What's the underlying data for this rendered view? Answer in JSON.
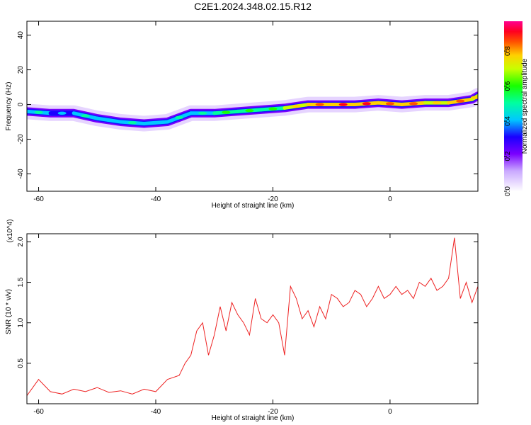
{
  "figure_title": "C2E1.2024.348.02.15.R12",
  "chart_data": [
    {
      "type": "heatmap",
      "title": "",
      "xlabel": "Height of straight line (km)",
      "ylabel": "Frequency (Hz)",
      "xlim": [
        -62,
        15
      ],
      "ylim": [
        -50,
        48
      ],
      "xticks": [
        -60,
        -40,
        -20,
        0
      ],
      "yticks": [
        40,
        20,
        0,
        -20,
        -40
      ],
      "grid": false,
      "colorbar": {
        "label": "Normalized spectral amplitude",
        "range": [
          0,
          0.97
        ],
        "ticks": [
          "0.0",
          "0.2",
          "0.4",
          "0.6",
          "0.8"
        ],
        "tick_values": [
          0,
          0.2,
          0.4,
          0.6,
          0.8
        ],
        "colormap": "white-violet-blue-cyan-green-yellow-orange-red-magenta"
      },
      "ridge": {
        "x": [
          -62,
          -58,
          -54,
          -50,
          -46,
          -42,
          -38,
          -34,
          -30,
          -26,
          -22,
          -18,
          -14,
          -10,
          -6,
          -2,
          2,
          6,
          10,
          14,
          15
        ],
        "frequency": [
          -4,
          -5,
          -5,
          -8,
          -10,
          -11,
          -10,
          -5,
          -5,
          -4,
          -3,
          -2,
          0,
          0,
          0,
          1,
          0,
          1,
          1,
          3,
          5
        ],
        "amplitude": [
          0.45,
          0.4,
          0.45,
          0.42,
          0.45,
          0.42,
          0.45,
          0.5,
          0.55,
          0.6,
          0.55,
          0.7,
          0.8,
          0.85,
          0.85,
          0.8,
          0.82,
          0.75,
          0.8,
          0.7,
          0.9
        ]
      }
    },
    {
      "type": "line",
      "title": "",
      "xlabel": "Height of straight line (km)",
      "ylabel": "SNR (10 * v/v)",
      "y_multiplier": "(x10^4)",
      "xlim": [
        -62,
        15
      ],
      "ylim": [
        0,
        2.1
      ],
      "xticks": [
        -60,
        -40,
        -20,
        0
      ],
      "yticks": [
        0.5,
        1.0,
        1.5,
        2.0
      ],
      "ytick_labels": [
        "0.5",
        "1.0",
        "1.5",
        "2.0"
      ],
      "grid": false,
      "series": [
        {
          "color": "#ee2222",
          "x": [
            -62,
            -60,
            -58,
            -56,
            -54,
            -52,
            -50,
            -48,
            -46,
            -44,
            -42,
            -40,
            -38,
            -36,
            -35,
            -34,
            -33,
            -32,
            -31,
            -30,
            -29,
            -28,
            -27,
            -26,
            -25,
            -24,
            -23,
            -22,
            -21,
            -20,
            -19,
            -18,
            -17,
            -16,
            -15,
            -14,
            -13,
            -12,
            -11,
            -10,
            -9,
            -8,
            -7,
            -6,
            -5,
            -4,
            -3,
            -2,
            -1,
            0,
            1,
            2,
            3,
            4,
            5,
            6,
            7,
            8,
            9,
            10,
            11,
            12,
            13,
            14,
            15
          ],
          "values": [
            0.1,
            0.3,
            0.15,
            0.12,
            0.18,
            0.15,
            0.2,
            0.14,
            0.16,
            0.12,
            0.18,
            0.15,
            0.3,
            0.35,
            0.5,
            0.6,
            0.9,
            1.0,
            0.6,
            0.85,
            1.2,
            0.9,
            1.25,
            1.1,
            1.0,
            0.85,
            1.3,
            1.05,
            1.0,
            1.1,
            1.0,
            0.6,
            1.45,
            1.3,
            1.05,
            1.15,
            0.95,
            1.2,
            1.05,
            1.35,
            1.3,
            1.2,
            1.25,
            1.4,
            1.35,
            1.2,
            1.3,
            1.45,
            1.3,
            1.35,
            1.45,
            1.35,
            1.4,
            1.3,
            1.5,
            1.45,
            1.55,
            1.4,
            1.45,
            1.55,
            2.05,
            1.3,
            1.5,
            1.25,
            1.45
          ]
        }
      ]
    }
  ]
}
